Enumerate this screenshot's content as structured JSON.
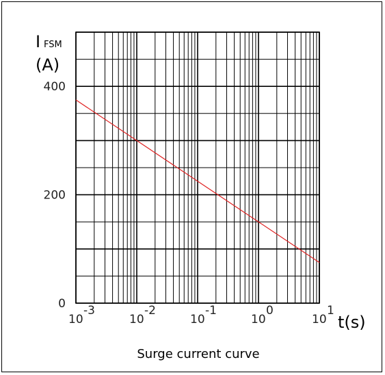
{
  "chart_data": {
    "type": "line",
    "title": "Surge current curve",
    "ylabel_main": "I",
    "ylabel_sub": "FSM",
    "ylabel_unit": "(A)",
    "xlabel": "t(s)",
    "x_scale": "log",
    "xlim": [
      0.001,
      10
    ],
    "ylim": [
      0,
      500
    ],
    "y_ticks": [
      {
        "value": 0,
        "label": "0"
      },
      {
        "value": 200,
        "label": "200"
      },
      {
        "value": 400,
        "label": "400"
      }
    ],
    "x_ticks": [
      {
        "value": 0.001,
        "base": "10",
        "exp": "-3"
      },
      {
        "value": 0.01,
        "base": "10",
        "exp": "-2"
      },
      {
        "value": 0.1,
        "base": "10",
        "exp": "-1"
      },
      {
        "value": 1,
        "base": "10",
        "exp": "0"
      },
      {
        "value": 10,
        "base": "10",
        "exp": "1"
      }
    ],
    "grid": true,
    "y_grid_step": 50,
    "series": [
      {
        "color": "#e02020",
        "points": [
          [
            0.001,
            375
          ],
          [
            0.01,
            300
          ],
          [
            1,
            150
          ],
          [
            10,
            75
          ]
        ]
      }
    ]
  }
}
